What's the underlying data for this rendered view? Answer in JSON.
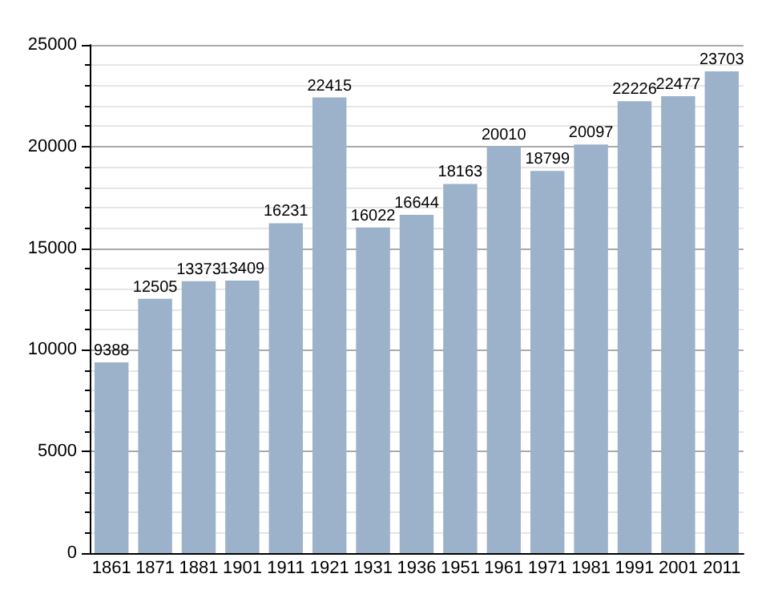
{
  "chart_data": {
    "type": "bar",
    "categories": [
      "1861",
      "1871",
      "1881",
      "1901",
      "1911",
      "1921",
      "1931",
      "1936",
      "1951",
      "1961",
      "1971",
      "1981",
      "1991",
      "2001",
      "2011"
    ],
    "values": [
      9388,
      12505,
      13373,
      13409,
      16231,
      22415,
      16022,
      16644,
      18163,
      20010,
      18799,
      20097,
      22226,
      22477,
      23703
    ],
    "color": "#9bb2ca",
    "ylim": [
      0,
      25000
    ],
    "yticks": [
      0,
      5000,
      10000,
      15000,
      20000,
      25000
    ],
    "grid": "y",
    "data_labels": true
  }
}
